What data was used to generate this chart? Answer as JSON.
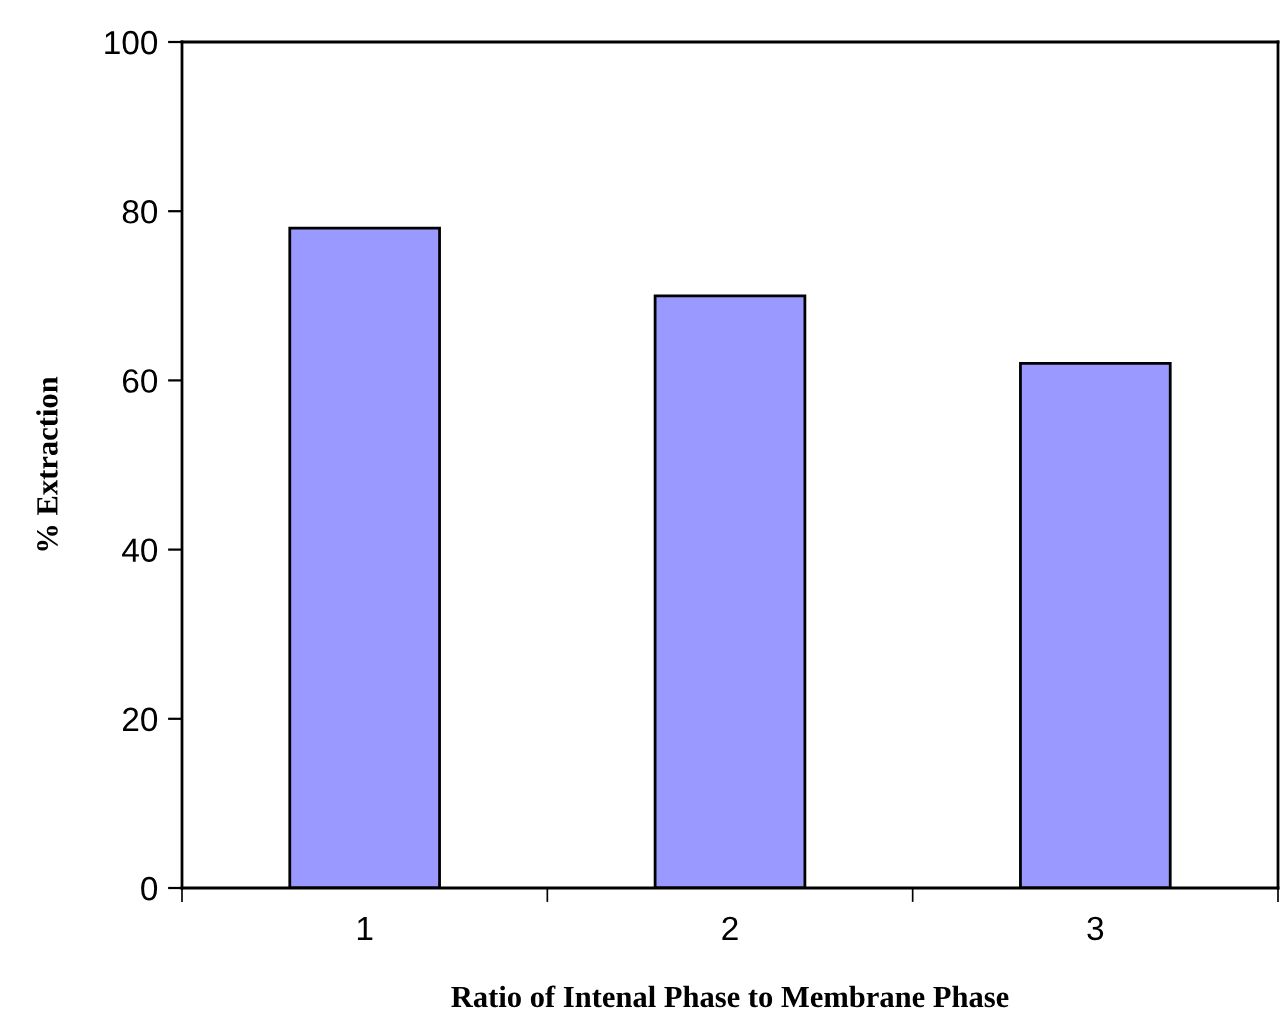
{
  "chart_data": {
    "type": "bar",
    "xlabel": "Ratio of Intenal Phase to Membrane Phase",
    "ylabel": "% Extraction",
    "categories": [
      "1",
      "2",
      "3"
    ],
    "values": [
      78,
      70,
      62
    ],
    "color": "#9999ff",
    "ylim": [
      0,
      100
    ],
    "yticks": [
      0,
      20,
      40,
      60,
      80,
      100
    ],
    "grid": false,
    "legend": false
  }
}
